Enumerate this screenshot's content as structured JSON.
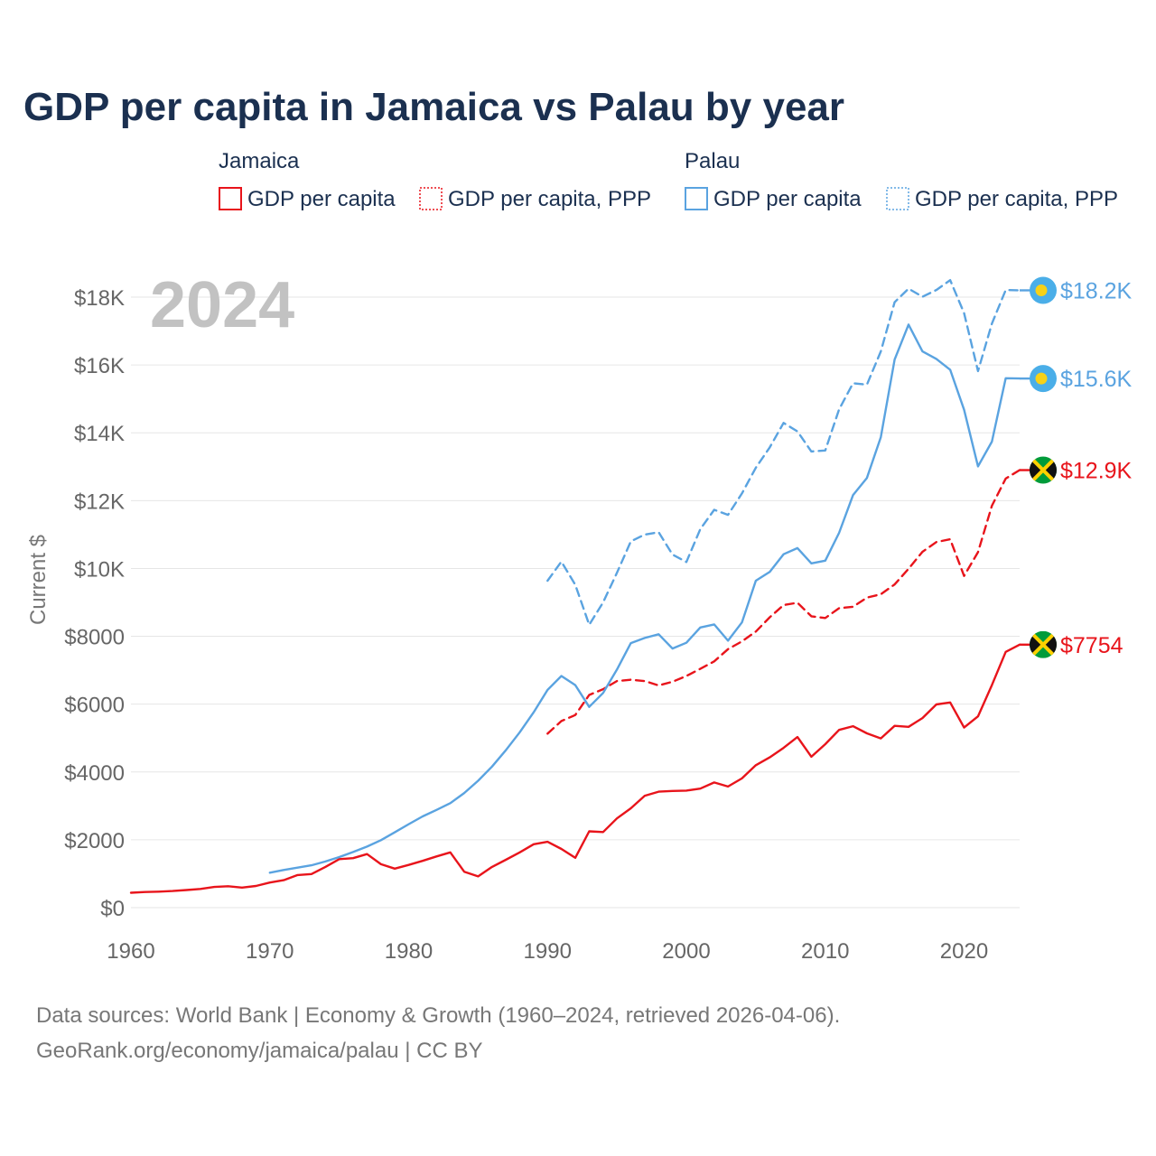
{
  "chart_data": {
    "type": "line",
    "title": "GDP per capita in Jamaica vs Palau by year",
    "ylabel": "Current $",
    "xlabel": "",
    "xlim": [
      1960,
      2024
    ],
    "ylim": [
      0,
      18000
    ],
    "big_year": "2024",
    "x_ticks": [
      {
        "value": 1960,
        "label": "1960"
      },
      {
        "value": 1970,
        "label": "1970"
      },
      {
        "value": 1980,
        "label": "1980"
      },
      {
        "value": 1990,
        "label": "1990"
      },
      {
        "value": 2000,
        "label": "2000"
      },
      {
        "value": 2010,
        "label": "2010"
      },
      {
        "value": 2020,
        "label": "2020"
      }
    ],
    "y_ticks": [
      {
        "value": 0,
        "label": "$0"
      },
      {
        "value": 2000,
        "label": "$2000"
      },
      {
        "value": 4000,
        "label": "$4000"
      },
      {
        "value": 6000,
        "label": "$6000"
      },
      {
        "value": 8000,
        "label": "$8000"
      },
      {
        "value": 10000,
        "label": "$10K"
      },
      {
        "value": 12000,
        "label": "$12K"
      },
      {
        "value": 14000,
        "label": "$14K"
      },
      {
        "value": 16000,
        "label": "$16K"
      },
      {
        "value": 18000,
        "label": "$18K"
      }
    ],
    "legend": {
      "groups": [
        {
          "name": "Jamaica",
          "items": [
            {
              "label": "GDP per capita",
              "style": "solid",
              "color": "#e8141b"
            },
            {
              "label": "GDP per capita, PPP",
              "style": "dashed",
              "color": "#e8141b"
            }
          ]
        },
        {
          "name": "Palau",
          "items": [
            {
              "label": "GDP per capita",
              "style": "solid",
              "color": "#5aa3e0"
            },
            {
              "label": "GDP per capita, PPP",
              "style": "dashed",
              "color": "#5aa3e0"
            }
          ]
        }
      ]
    },
    "series": [
      {
        "name": "Jamaica GDP per capita",
        "color": "#e8141b",
        "style": "solid",
        "end_label": "$7754",
        "flag": "jamaica",
        "x": [
          1960,
          1961,
          1962,
          1963,
          1964,
          1965,
          1966,
          1967,
          1968,
          1969,
          1970,
          1971,
          1972,
          1973,
          1974,
          1975,
          1976,
          1977,
          1978,
          1979,
          1980,
          1981,
          1982,
          1983,
          1984,
          1985,
          1986,
          1987,
          1988,
          1989,
          1990,
          1991,
          1992,
          1993,
          1994,
          1995,
          1996,
          1997,
          1998,
          1999,
          2000,
          2001,
          2002,
          2003,
          2004,
          2005,
          2006,
          2007,
          2008,
          2009,
          2010,
          2011,
          2012,
          2013,
          2014,
          2015,
          2016,
          2017,
          2018,
          2019,
          2020,
          2021,
          2022,
          2023,
          2024
        ],
        "values": [
          440,
          460,
          470,
          490,
          520,
          550,
          610,
          630,
          590,
          640,
          740,
          810,
          960,
          990,
          1200,
          1430,
          1460,
          1580,
          1280,
          1150,
          1260,
          1380,
          1510,
          1630,
          1060,
          920,
          1200,
          1410,
          1630,
          1870,
          1940,
          1730,
          1470,
          2250,
          2230,
          2630,
          2930,
          3300,
          3420,
          3440,
          3450,
          3510,
          3690,
          3570,
          3810,
          4200,
          4430,
          4710,
          5030,
          4450,
          4820,
          5240,
          5350,
          5140,
          4990,
          5360,
          5330,
          5590,
          5990,
          6050,
          5310,
          5640,
          6560,
          7540,
          7754
        ]
      },
      {
        "name": "Jamaica GDP per capita, PPP",
        "color": "#e8141b",
        "style": "dashed",
        "end_label": "$12.9K",
        "flag": "jamaica",
        "x": [
          1990,
          1991,
          1992,
          1993,
          1994,
          1995,
          1996,
          1997,
          1998,
          1999,
          2000,
          2001,
          2002,
          2003,
          2004,
          2005,
          2006,
          2007,
          2008,
          2009,
          2010,
          2011,
          2012,
          2013,
          2014,
          2015,
          2016,
          2017,
          2018,
          2019,
          2020,
          2021,
          2022,
          2023,
          2024
        ],
        "values": [
          5130,
          5500,
          5680,
          6270,
          6440,
          6680,
          6720,
          6680,
          6550,
          6660,
          6830,
          7040,
          7260,
          7620,
          7850,
          8140,
          8560,
          8920,
          8990,
          8590,
          8540,
          8830,
          8870,
          9140,
          9240,
          9530,
          9990,
          10490,
          10780,
          10860,
          9780,
          10480,
          11850,
          12650,
          12900
        ]
      },
      {
        "name": "Palau GDP per capita",
        "color": "#5aa3e0",
        "style": "solid",
        "end_label": "$15.6K",
        "flag": "palau",
        "x": [
          1970,
          1971,
          1972,
          1973,
          1974,
          1975,
          1976,
          1977,
          1978,
          1979,
          1980,
          1981,
          1982,
          1983,
          1984,
          1985,
          1986,
          1987,
          1988,
          1989,
          1990,
          1991,
          1992,
          1993,
          1994,
          1995,
          1996,
          1997,
          1998,
          1999,
          2000,
          2001,
          2002,
          2003,
          2004,
          2005,
          2006,
          2007,
          2008,
          2009,
          2010,
          2011,
          2012,
          2013,
          2014,
          2015,
          2016,
          2017,
          2018,
          2019,
          2020,
          2021,
          2022,
          2023,
          2024
        ],
        "values": [
          1030,
          1110,
          1180,
          1250,
          1360,
          1490,
          1640,
          1800,
          1990,
          2220,
          2460,
          2690,
          2880,
          3080,
          3380,
          3740,
          4160,
          4640,
          5170,
          5760,
          6420,
          6830,
          6560,
          5920,
          6330,
          7020,
          7800,
          7950,
          8060,
          7640,
          7810,
          8260,
          8350,
          7870,
          8410,
          9640,
          9900,
          10420,
          10600,
          10150,
          10230,
          11050,
          12160,
          12670,
          13870,
          16160,
          17190,
          16400,
          16180,
          15860,
          14680,
          13010,
          13740,
          15610,
          15600
        ]
      },
      {
        "name": "Palau GDP per capita, PPP",
        "color": "#5aa3e0",
        "style": "dashed",
        "end_label": "$18.2K",
        "flag": "palau",
        "x": [
          1990,
          1991,
          1992,
          1993,
          1994,
          1995,
          1996,
          1997,
          1998,
          1999,
          2000,
          2001,
          2002,
          2003,
          2004,
          2005,
          2006,
          2007,
          2008,
          2009,
          2010,
          2011,
          2012,
          2013,
          2014,
          2015,
          2016,
          2017,
          2018,
          2019,
          2020,
          2021,
          2022,
          2023,
          2024
        ],
        "values": [
          9640,
          10200,
          9520,
          8340,
          9000,
          9870,
          10800,
          11000,
          11070,
          10410,
          10190,
          11160,
          11730,
          11580,
          12210,
          12970,
          13570,
          14290,
          14040,
          13450,
          13480,
          14690,
          15460,
          15420,
          16400,
          17850,
          18250,
          18010,
          18210,
          18500,
          17530,
          15820,
          17220,
          18210,
          18200
        ]
      }
    ],
    "source_line1": "Data sources: World Bank | Economy & Growth (1960–2024, retrieved 2026-04-06).",
    "source_line2": "GeoRank.org/economy/jamaica/palau | CC BY"
  }
}
